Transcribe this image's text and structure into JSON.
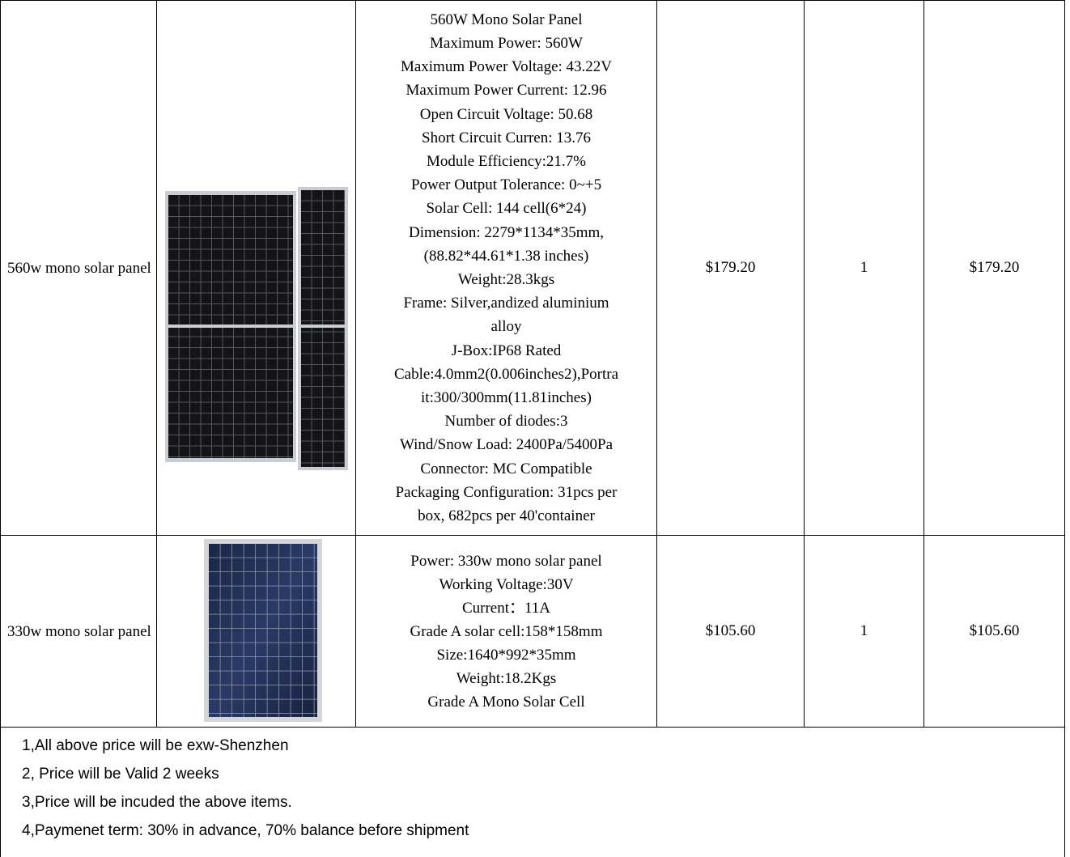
{
  "rows": [
    {
      "name": "560w mono solar panel",
      "image_icon": "solar-panel-pair-image",
      "specs": [
        "560W Mono Solar Panel",
        "Maximum Power: 560W",
        "Maximum Power Voltage: 43.22V",
        "Maximum Power Current: 12.96",
        "Open Circuit Voltage: 50.68",
        "Short Circuit Curren: 13.76",
        "Module Efficiency:21.7%",
        "Power Output Tolerance: 0~+5",
        "Solar Cell: 144 cell(6*24)",
        "Dimension: 2279*1134*35mm,",
        "(88.82*44.61*1.38 inches)",
        "Weight:28.3kgs",
        "Frame: Silver,andized aluminium",
        "alloy",
        "J-Box:IP68 Rated",
        "Cable:4.0mm2(0.006inches2),Portra",
        "it:300/300mm(11.81inches)",
        "Number of diodes:3",
        "Wind/Snow Load: 2400Pa/5400Pa",
        "Connector: MC Compatible",
        "Packaging Configuration: 31pcs per",
        "box, 682pcs per 40'container"
      ],
      "unit_price": "$179.20",
      "quantity": "1",
      "total": "$179.20"
    },
    {
      "name": "330w mono solar panel",
      "image_icon": "solar-panel-single-image",
      "specs": [
        "Power: 330w mono solar panel",
        "Working Voltage:30V",
        "Current：11A",
        "Grade A solar cell:158*158mm",
        "Size:1640*992*35mm",
        "Weight:18.2Kgs",
        "Grade A Mono Solar Cell"
      ],
      "unit_price": "$105.60",
      "quantity": "1",
      "total": "$105.60"
    }
  ],
  "notes": [
    "1,All above price will be exw-Shenzhen",
    "2, Price will be Valid 2 weeks",
    "3,Price will be incuded the above items.",
    "4,Paymenet term: 30% in advance, 70% balance before shipment"
  ],
  "colors": {
    "border": "#000000",
    "panel_mono": "#1a1a1c",
    "panel_blue": "#1d2a4a",
    "frame": "#c9ccd0"
  }
}
